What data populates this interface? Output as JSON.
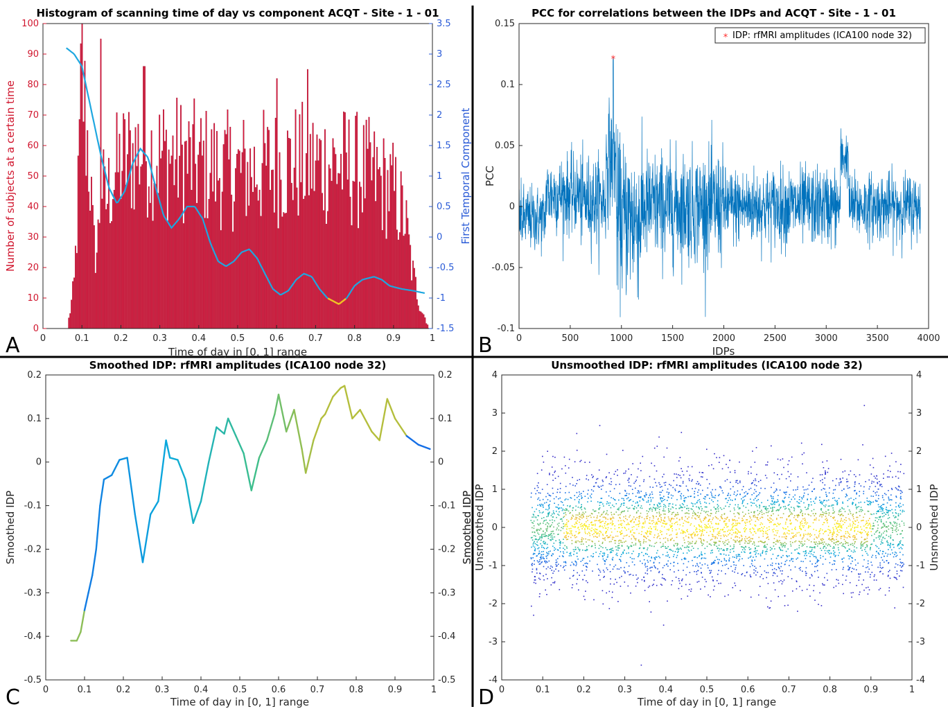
{
  "colors": {
    "bar": "#dc143c",
    "blue_axis": "#2a5bd7",
    "red_axis": "#d0142c",
    "pcc_line": "#0072bd",
    "marker": "#ff2b2b"
  },
  "chart_data": [
    {
      "panel": "A",
      "type": "bar",
      "title": "Histogram of scanning time of day vs component ACQT - Site - 1 - 01",
      "xlabel": "Time of day in [0, 1] range",
      "ylabel": "Number of subjects at a certain time",
      "ylabel_right": "First Temporal Component",
      "xlim": [
        0,
        1
      ],
      "ylim": [
        0,
        100
      ],
      "ylim_right": [
        -1.5,
        3.5
      ],
      "x_ticks": [
        "0",
        "0.1",
        "0.2",
        "0.3",
        "0.4",
        "0.5",
        "0.6",
        "0.7",
        "0.8",
        "0.9",
        "1"
      ],
      "y_ticks": [
        "0",
        "10",
        "20",
        "30",
        "40",
        "50",
        "60",
        "70",
        "80",
        "90",
        "100"
      ],
      "y_ticks_right": [
        "-1.5",
        "-1",
        "-0.5",
        "0",
        "0.5",
        "1",
        "1.5",
        "2",
        "2.5",
        "3",
        "3.5"
      ],
      "hist_envelope_x": [
        0.065,
        0.08,
        0.09,
        0.1,
        0.11,
        0.12,
        0.13,
        0.14,
        0.15,
        0.16,
        0.18,
        0.2,
        0.22,
        0.25,
        0.3,
        0.35,
        0.4,
        0.45,
        0.5,
        0.55,
        0.6,
        0.65,
        0.7,
        0.75,
        0.8,
        0.85,
        0.9,
        0.93,
        0.95,
        0.97,
        0.99
      ],
      "hist_envelope_y": [
        2,
        15,
        45,
        95,
        75,
        60,
        30,
        28,
        55,
        45,
        55,
        60,
        62,
        65,
        63,
        62,
        60,
        58,
        57,
        58,
        59,
        60,
        60,
        60,
        58,
        55,
        50,
        40,
        20,
        8,
        1
      ],
      "hist_peaks": [
        [
          0.1,
          100
        ],
        [
          0.15,
          95
        ],
        [
          0.26,
          86
        ],
        [
          0.68,
          85
        ],
        [
          0.6,
          82
        ]
      ],
      "curve_x": [
        0.06,
        0.08,
        0.1,
        0.12,
        0.15,
        0.17,
        0.19,
        0.21,
        0.23,
        0.25,
        0.27,
        0.29,
        0.31,
        0.33,
        0.35,
        0.37,
        0.39,
        0.41,
        0.43,
        0.45,
        0.47,
        0.49,
        0.51,
        0.53,
        0.55,
        0.57,
        0.59,
        0.61,
        0.63,
        0.65,
        0.67,
        0.69,
        0.71,
        0.73,
        0.76,
        0.78,
        0.8,
        0.82,
        0.85,
        0.87,
        0.89,
        0.92,
        0.95,
        0.98
      ],
      "curve_y": [
        3.1,
        3.0,
        2.8,
        2.2,
        1.3,
        0.8,
        0.55,
        0.75,
        1.2,
        1.45,
        1.3,
        0.8,
        0.35,
        0.15,
        0.3,
        0.5,
        0.5,
        0.3,
        -0.1,
        -0.4,
        -0.48,
        -0.4,
        -0.25,
        -0.2,
        -0.35,
        -0.6,
        -0.85,
        -0.95,
        -0.88,
        -0.7,
        -0.6,
        -0.65,
        -0.85,
        -1.0,
        -1.1,
        -1.0,
        -0.8,
        -0.7,
        -0.65,
        -0.7,
        -0.8,
        -0.85,
        -0.88,
        -0.92
      ],
      "curve_highlight_x": [
        0.73,
        0.78
      ]
    },
    {
      "panel": "B",
      "type": "line",
      "title": "PCC for correlations between the IDPs and ACQT - Site - 1 - 01",
      "xlabel": "IDPs",
      "ylabel": "PCC",
      "xlim": [
        0,
        4000
      ],
      "ylim": [
        -0.1,
        0.15
      ],
      "x_ticks": [
        "0",
        "500",
        "1000",
        "1500",
        "2000",
        "2500",
        "3000",
        "3500",
        "4000"
      ],
      "y_ticks": [
        "-0.1",
        "-0.05",
        "0",
        "0.05",
        "0.1",
        "0.15"
      ],
      "x_max": 3920,
      "legend": "IDP: rfMRI amplitudes (ICA100 node 32)",
      "legend_position": "top-right",
      "marker_point": [
        920,
        0.122
      ],
      "segments": [
        {
          "x0": 0,
          "x1": 260,
          "base": -0.01,
          "amp": 0.03
        },
        {
          "x0": 260,
          "x1": 600,
          "base": 0.01,
          "amp": 0.035
        },
        {
          "x0": 600,
          "x1": 850,
          "base": 0.005,
          "amp": 0.04
        },
        {
          "x0": 850,
          "x1": 950,
          "base": 0.04,
          "amp": 0.05
        },
        {
          "x0": 950,
          "x1": 1200,
          "base": -0.01,
          "amp": 0.07
        },
        {
          "x0": 1200,
          "x1": 2000,
          "base": 0,
          "amp": 0.05
        },
        {
          "x0": 2000,
          "x1": 3140,
          "base": 0,
          "amp": 0.035
        },
        {
          "x0": 3140,
          "x1": 3220,
          "base": 0.04,
          "amp": 0.025
        },
        {
          "x0": 3220,
          "x1": 3920,
          "base": 0,
          "amp": 0.03
        }
      ]
    },
    {
      "panel": "C",
      "type": "line",
      "title": "Smoothed IDP: rfMRI amplitudes (ICA100 node 32)",
      "xlabel": "Time of day in [0, 1] range",
      "ylabel": "Smoothed IDP",
      "ylabel_right": "Smoothed IDP",
      "xlim": [
        0,
        1
      ],
      "ylim": [
        -0.5,
        0.2
      ],
      "x_ticks": [
        "0",
        "0.1",
        "0.2",
        "0.3",
        "0.4",
        "0.5",
        "0.6",
        "0.7",
        "0.8",
        "0.9",
        "1"
      ],
      "y_ticks": [
        "-0.5",
        "-0.4",
        "-0.3",
        "-0.2",
        "-0.1",
        "0",
        "0.1",
        "0.2"
      ],
      "x": [
        0.065,
        0.08,
        0.09,
        0.1,
        0.11,
        0.12,
        0.13,
        0.14,
        0.15,
        0.16,
        0.17,
        0.19,
        0.21,
        0.23,
        0.25,
        0.27,
        0.29,
        0.31,
        0.32,
        0.34,
        0.36,
        0.38,
        0.4,
        0.42,
        0.44,
        0.46,
        0.47,
        0.49,
        0.51,
        0.53,
        0.55,
        0.57,
        0.59,
        0.6,
        0.62,
        0.64,
        0.66,
        0.67,
        0.69,
        0.71,
        0.72,
        0.74,
        0.76,
        0.77,
        0.79,
        0.81,
        0.84,
        0.86,
        0.88,
        0.9,
        0.93,
        0.96,
        0.99
      ],
      "y": [
        -0.41,
        -0.41,
        -0.39,
        -0.34,
        -0.3,
        -0.26,
        -0.2,
        -0.1,
        -0.04,
        -0.035,
        -0.03,
        0.005,
        0.01,
        -0.12,
        -0.23,
        -0.12,
        -0.09,
        0.05,
        0.01,
        0.005,
        -0.04,
        -0.14,
        -0.09,
        0.0,
        0.08,
        0.065,
        0.1,
        0.06,
        0.02,
        -0.065,
        0.01,
        0.05,
        0.11,
        0.155,
        0.07,
        0.12,
        0.03,
        -0.025,
        0.05,
        0.1,
        0.11,
        0.15,
        0.17,
        0.175,
        0.1,
        0.12,
        0.07,
        0.05,
        0.145,
        0.1,
        0.06,
        0.04,
        0.03
      ]
    },
    {
      "panel": "D",
      "type": "scatter",
      "title": "Unsmoothed IDP: rfMRI amplitudes (ICA100 node 32)",
      "xlabel": "Time of day in [0, 1] range",
      "ylabel": "Unsmoothed IDP",
      "ylabel_overlap": "Smoothed IDP",
      "ylabel_right": "Unsmoothed IDP",
      "xlim": [
        0,
        1
      ],
      "ylim": [
        -4,
        4
      ],
      "x_ticks": [
        "0",
        "0.1",
        "0.2",
        "0.3",
        "0.4",
        "0.5",
        "0.6",
        "0.7",
        "0.8",
        "0.9",
        "1"
      ],
      "y_ticks": [
        "-4",
        "-3",
        "-2",
        "-1",
        "0",
        "1",
        "2",
        "3",
        "4"
      ],
      "x_range": [
        0.07,
        0.98
      ],
      "y_center": 0,
      "colormap": "parula"
    }
  ],
  "panel_letters": [
    "A",
    "B",
    "C",
    "D"
  ]
}
